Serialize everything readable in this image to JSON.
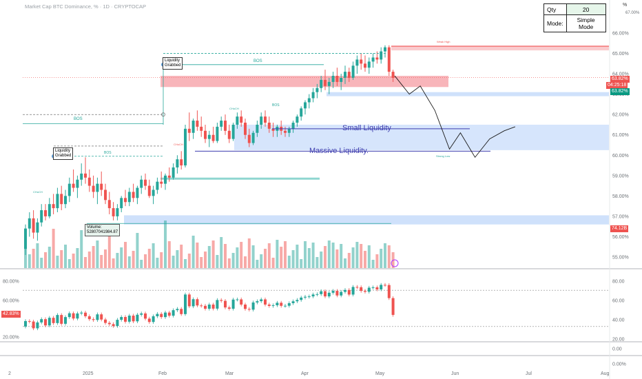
{
  "title": "Market Cap BTC Dominance, % · 1D · CRYPTOCAP",
  "widget": {
    "qty_label": "Qty",
    "qty_value": "20",
    "mode_label": "Mode:",
    "mode_value": "Simple Mode"
  },
  "percent_button": "%",
  "tags": {
    "last_price": "63.82%",
    "countdown": "04:25:18",
    "prev_price": "63.82%",
    "volume": "74.12B",
    "rsi": "42.83%"
  },
  "annotations": {
    "bos_1": "BOS",
    "bos_2": "BOS",
    "bos_3": "BOS",
    "bos_small": "BOS",
    "liq_grabbed_1a": "Liquidity",
    "liq_grabbed_1b": "Grabbed",
    "liq_grabbed_2a": "Liquidity",
    "liq_grabbed_2b": "Grabbed",
    "small_liq": "Small Liquidity",
    "massive_liq": "Massive Liquidity.",
    "choch": "CHoCH",
    "weak_high": "Weak High",
    "strong_low": "Strong Low",
    "volume_label": "Volume:",
    "volume_value": "52807041984.87"
  },
  "colors": {
    "up": "#26a69a",
    "down": "#ef5350",
    "supply": "#f7a8ae",
    "demand": "#cfe1fb",
    "target": "#5b9bd5",
    "tline": "#1a1a1a"
  },
  "chart_data": {
    "type": "candlestick",
    "title": "Market Cap BTC Dominance, % · 1D · CRYPTOCAP",
    "price_axis": {
      "ticks": [
        "66.00%",
        "65.00%",
        "64.00%",
        "63.00%",
        "62.00%",
        "61.00%",
        "60.00%",
        "59.00%",
        "58.00%",
        "57.00%",
        "56.00%",
        "55.00%"
      ],
      "range": [
        54.6,
        66.5
      ]
    },
    "x_axis": {
      "ticks": [
        "2",
        "2025",
        "Feb",
        "Mar",
        "Apr",
        "May",
        "Jun",
        "Jul",
        "Aug"
      ]
    },
    "ohlc": [
      [
        55.4,
        56.6,
        55.1,
        56.4
      ],
      [
        56.4,
        57.2,
        56.0,
        56.9
      ],
      [
        56.9,
        57.3,
        55.9,
        56.2
      ],
      [
        56.2,
        56.9,
        55.8,
        56.7
      ],
      [
        56.7,
        57.6,
        56.5,
        57.3
      ],
      [
        57.3,
        57.6,
        56.8,
        57.0
      ],
      [
        57.0,
        57.9,
        56.9,
        57.6
      ],
      [
        57.6,
        58.1,
        57.1,
        57.4
      ],
      [
        57.4,
        58.4,
        57.2,
        58.1
      ],
      [
        58.1,
        58.5,
        57.3,
        57.6
      ],
      [
        57.6,
        58.3,
        57.4,
        58.0
      ],
      [
        58.0,
        58.9,
        57.7,
        58.6
      ],
      [
        58.6,
        59.3,
        58.2,
        58.4
      ],
      [
        58.4,
        59.0,
        57.9,
        58.8
      ],
      [
        58.8,
        59.6,
        58.5,
        59.1
      ],
      [
        59.1,
        59.9,
        58.6,
        58.9
      ],
      [
        58.9,
        59.3,
        58.2,
        58.5
      ],
      [
        58.5,
        59.0,
        57.9,
        58.2
      ],
      [
        58.2,
        58.9,
        57.6,
        58.6
      ],
      [
        58.6,
        59.2,
        58.0,
        58.3
      ],
      [
        58.3,
        58.6,
        57.6,
        57.8
      ],
      [
        57.8,
        58.2,
        57.1,
        57.4
      ],
      [
        57.4,
        57.7,
        56.8,
        57.0
      ],
      [
        57.0,
        57.6,
        56.8,
        57.4
      ],
      [
        57.4,
        58.0,
        57.2,
        57.9
      ],
      [
        57.9,
        58.3,
        57.5,
        57.7
      ],
      [
        57.7,
        58.4,
        57.5,
        58.2
      ],
      [
        58.2,
        58.6,
        57.7,
        57.9
      ],
      [
        57.9,
        58.5,
        57.6,
        58.4
      ],
      [
        58.4,
        59.0,
        58.1,
        58.8
      ],
      [
        58.8,
        59.1,
        58.3,
        58.5
      ],
      [
        58.5,
        58.8,
        57.9,
        58.0
      ],
      [
        58.0,
        58.5,
        57.6,
        58.3
      ],
      [
        58.3,
        58.9,
        58.1,
        58.7
      ],
      [
        58.7,
        59.2,
        58.4,
        58.6
      ],
      [
        58.6,
        59.1,
        58.3,
        59.0
      ],
      [
        59.0,
        59.4,
        58.7,
        58.9
      ],
      [
        58.9,
        59.6,
        58.8,
        59.4
      ],
      [
        59.4,
        60.0,
        59.1,
        59.8
      ],
      [
        59.8,
        60.2,
        59.3,
        59.5
      ],
      [
        59.5,
        61.5,
        59.4,
        61.3
      ],
      [
        61.3,
        62.1,
        60.7,
        61.1
      ],
      [
        61.1,
        61.8,
        60.8,
        61.7
      ],
      [
        61.7,
        62.2,
        61.2,
        61.4
      ],
      [
        61.4,
        61.9,
        60.9,
        61.2
      ],
      [
        61.2,
        61.5,
        60.6,
        60.8
      ],
      [
        60.8,
        61.2,
        60.4,
        61.0
      ],
      [
        61.0,
        61.4,
        60.6,
        60.7
      ],
      [
        60.7,
        61.6,
        60.6,
        61.4
      ],
      [
        61.4,
        61.9,
        61.2,
        61.7
      ],
      [
        61.7,
        62.0,
        61.0,
        61.2
      ],
      [
        61.2,
        61.5,
        60.6,
        60.8
      ],
      [
        60.8,
        61.6,
        60.7,
        61.5
      ],
      [
        61.5,
        62.1,
        61.3,
        61.9
      ],
      [
        61.9,
        62.2,
        61.4,
        61.6
      ],
      [
        61.6,
        61.8,
        60.8,
        61.0
      ],
      [
        61.0,
        61.3,
        60.4,
        60.6
      ],
      [
        60.6,
        61.2,
        60.5,
        61.1
      ],
      [
        61.1,
        61.7,
        60.9,
        61.5
      ],
      [
        61.5,
        62.1,
        61.3,
        61.9
      ],
      [
        61.9,
        62.2,
        61.4,
        61.6
      ],
      [
        61.6,
        61.9,
        61.1,
        61.3
      ],
      [
        61.3,
        61.6,
        60.9,
        61.2
      ],
      [
        61.2,
        61.5,
        60.9,
        61.4
      ],
      [
        61.4,
        61.7,
        61.0,
        61.2
      ],
      [
        61.2,
        61.4,
        60.9,
        61.1
      ],
      [
        61.1,
        61.4,
        60.9,
        61.3
      ],
      [
        61.3,
        61.7,
        61.1,
        61.6
      ],
      [
        61.6,
        62.0,
        61.4,
        61.9
      ],
      [
        61.9,
        62.4,
        61.7,
        62.3
      ],
      [
        62.3,
        62.7,
        62.0,
        62.6
      ],
      [
        62.6,
        63.0,
        62.3,
        62.8
      ],
      [
        62.8,
        63.3,
        62.6,
        63.1
      ],
      [
        63.1,
        63.5,
        62.8,
        63.3
      ],
      [
        63.3,
        63.9,
        63.1,
        63.7
      ],
      [
        63.7,
        64.2,
        63.2,
        63.4
      ],
      [
        63.4,
        63.8,
        63.0,
        63.6
      ],
      [
        63.6,
        64.1,
        63.3,
        63.9
      ],
      [
        63.9,
        64.3,
        63.4,
        63.6
      ],
      [
        63.6,
        64.0,
        63.2,
        63.8
      ],
      [
        63.8,
        64.4,
        63.5,
        64.1
      ],
      [
        64.1,
        64.3,
        63.6,
        63.8
      ],
      [
        63.8,
        64.6,
        63.7,
        64.4
      ],
      [
        64.4,
        64.9,
        64.0,
        64.7
      ],
      [
        64.7,
        65.0,
        64.2,
        64.5
      ],
      [
        64.5,
        64.9,
        64.1,
        64.3
      ],
      [
        64.3,
        64.8,
        64.0,
        64.6
      ],
      [
        64.6,
        65.0,
        64.3,
        64.8
      ],
      [
        64.8,
        65.1,
        64.5,
        64.7
      ],
      [
        64.7,
        65.3,
        64.5,
        65.1
      ],
      [
        65.1,
        65.4,
        64.8,
        65.3
      ],
      [
        65.3,
        65.4,
        63.9,
        64.1
      ],
      [
        64.1,
        64.2,
        63.6,
        63.8
      ]
    ],
    "volume": {
      "last": "74.12B",
      "label": "Volume: 52807041984.87"
    },
    "rsi": {
      "axis_ticks": [
        "80.00",
        "60.00",
        "40.00",
        "20.00"
      ],
      "left_ticks": [
        "80.00%",
        "60.00%",
        "20.00%"
      ],
      "last": "42.83%",
      "levels": [
        70,
        30
      ]
    },
    "lower_axis": {
      "ticks": [
        "0.00",
        "0.00%"
      ]
    },
    "projection": [
      [
        63.9,
        0
      ],
      [
        63.0,
        8
      ],
      [
        63.4,
        14
      ],
      [
        62.2,
        22
      ],
      [
        60.3,
        30
      ],
      [
        61.1,
        36
      ],
      [
        59.9,
        44
      ],
      [
        60.8,
        52
      ],
      [
        61.2,
        60
      ],
      [
        61.4,
        66
      ]
    ]
  }
}
